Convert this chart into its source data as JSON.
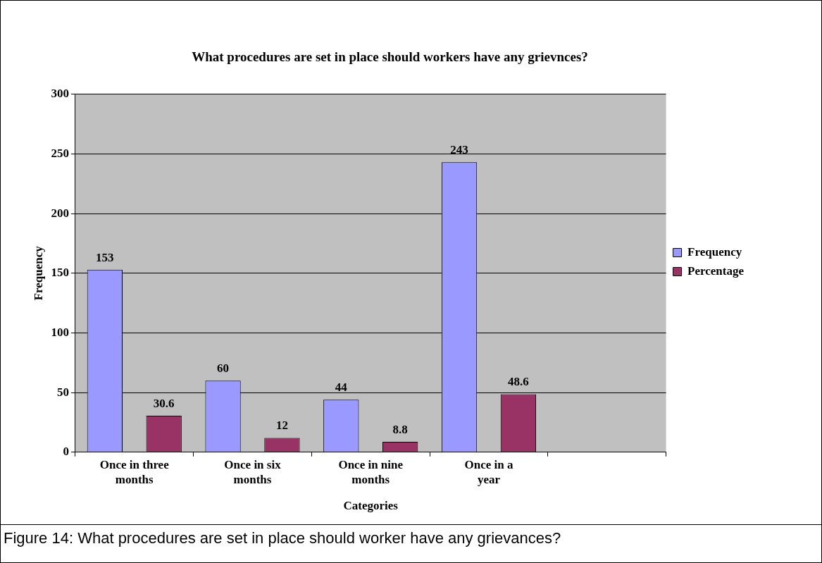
{
  "chart_data": {
    "type": "bar",
    "title": "What procedures are set in place should workers have any grievnces?",
    "xlabel": "Categories",
    "ylabel": "Frequency",
    "categories": [
      "Once in three months",
      "Once in six months",
      "Once in nine months",
      "Once in a year",
      null
    ],
    "series": [
      {
        "name": "Frequency",
        "color": "#9999ff",
        "values": [
          153,
          60,
          44,
          243,
          null
        ]
      },
      {
        "name": "Percentage",
        "color": "#993366",
        "values": [
          30.6,
          12,
          8.8,
          48.6,
          null
        ]
      }
    ],
    "ylim": [
      0,
      300
    ],
    "yticks": [
      0,
      50,
      100,
      150,
      200,
      250,
      300
    ],
    "grid": "y",
    "legend": "right",
    "data_labels": true,
    "annotations": [
      "Figure 14: What procedures are set in place should worker have any grievances?"
    ]
  }
}
